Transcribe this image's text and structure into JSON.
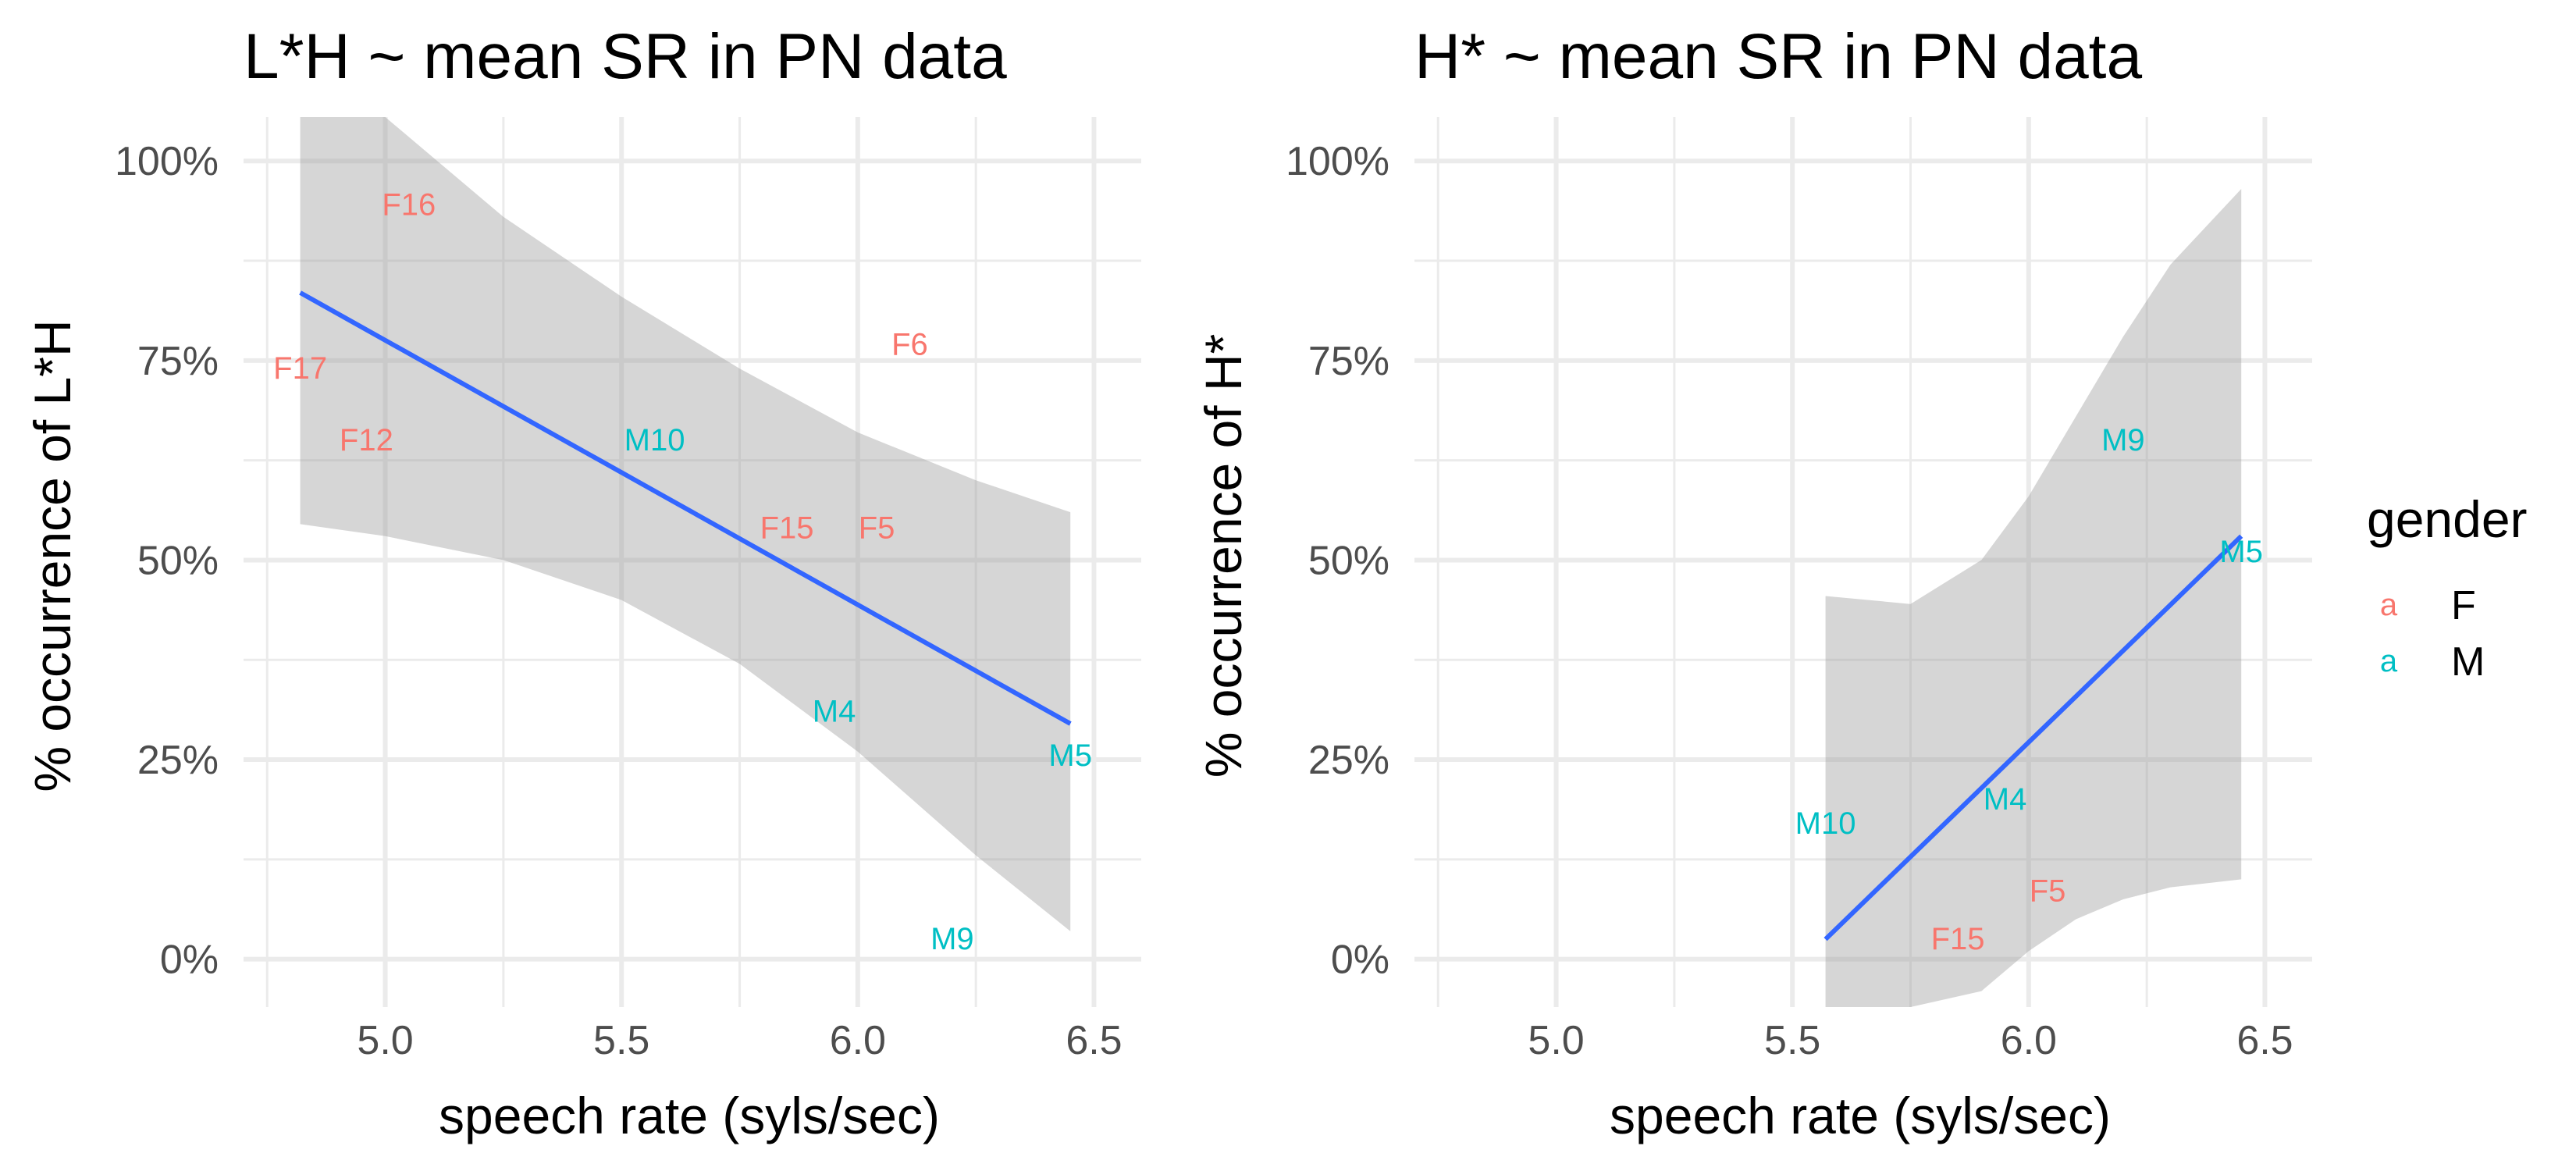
{
  "legend": {
    "title": "gender",
    "key_glyph": "a",
    "items": [
      {
        "label": "F",
        "color": "#F8766D"
      },
      {
        "label": "M",
        "color": "#00BFC4"
      }
    ]
  },
  "fit_color": "#3366FF",
  "chart_data": [
    {
      "type": "scatter",
      "title": "L*H ~ mean SR in PN data",
      "xlabel": "speech rate (syls/sec)",
      "ylabel": "% occurrence of L*H",
      "xlim": [
        4.7,
        6.6
      ],
      "ylim": [
        -0.06,
        1.055
      ],
      "xticks": [
        5.0,
        5.5,
        6.0,
        6.5
      ],
      "xtick_labels": [
        "5.0",
        "5.5",
        "6.0",
        "6.5"
      ],
      "yticks": [
        0,
        0.25,
        0.5,
        0.75,
        1.0
      ],
      "ytick_labels": [
        "0%",
        "25%",
        "50%",
        "75%",
        "100%"
      ],
      "grid": true,
      "points": [
        {
          "label": "F16",
          "gender": "F",
          "x": 5.05,
          "y": 0.945
        },
        {
          "label": "F17",
          "gender": "F",
          "x": 4.82,
          "y": 0.74
        },
        {
          "label": "F12",
          "gender": "F",
          "x": 4.96,
          "y": 0.65
        },
        {
          "label": "F6",
          "gender": "F",
          "x": 6.11,
          "y": 0.77
        },
        {
          "label": "M10",
          "gender": "M",
          "x": 5.57,
          "y": 0.65
        },
        {
          "label": "F15",
          "gender": "F",
          "x": 5.85,
          "y": 0.54
        },
        {
          "label": "F5",
          "gender": "F",
          "x": 6.04,
          "y": 0.54
        },
        {
          "label": "M4",
          "gender": "M",
          "x": 5.95,
          "y": 0.31
        },
        {
          "label": "M5",
          "gender": "M",
          "x": 6.45,
          "y": 0.255
        },
        {
          "label": "M9",
          "gender": "M",
          "x": 6.2,
          "y": 0.025
        }
      ],
      "fit": {
        "x": [
          4.82,
          6.45
        ],
        "y": [
          0.835,
          0.295
        ]
      },
      "ribbon": {
        "x": [
          4.82,
          5.0,
          5.25,
          5.5,
          5.75,
          6.0,
          6.25,
          6.45
        ],
        "upper": [
          1.055,
          1.055,
          0.93,
          0.83,
          0.74,
          0.66,
          0.6,
          0.56
        ],
        "lower": [
          0.545,
          0.53,
          0.5,
          0.45,
          0.37,
          0.26,
          0.13,
          0.035
        ]
      }
    },
    {
      "type": "scatter",
      "title": "H* ~ mean SR in PN data",
      "xlabel": "speech rate (syls/sec)",
      "ylabel": "% occurrence of H*",
      "xlim": [
        4.7,
        6.6
      ],
      "ylim": [
        -0.06,
        1.055
      ],
      "xticks": [
        5.0,
        5.5,
        6.0,
        6.5
      ],
      "xtick_labels": [
        "5.0",
        "5.5",
        "6.0",
        "6.5"
      ],
      "yticks": [
        0,
        0.25,
        0.5,
        0.75,
        1.0
      ],
      "ytick_labels": [
        "0%",
        "25%",
        "50%",
        "75%",
        "100%"
      ],
      "grid": true,
      "points": [
        {
          "label": "M9",
          "gender": "M",
          "x": 6.2,
          "y": 0.65
        },
        {
          "label": "M5",
          "gender": "M",
          "x": 6.45,
          "y": 0.51
        },
        {
          "label": "M10",
          "gender": "M",
          "x": 5.57,
          "y": 0.17
        },
        {
          "label": "M4",
          "gender": "M",
          "x": 5.95,
          "y": 0.2
        },
        {
          "label": "F5",
          "gender": "F",
          "x": 6.04,
          "y": 0.085
        },
        {
          "label": "F15",
          "gender": "F",
          "x": 5.85,
          "y": 0.025
        }
      ],
      "fit": {
        "x": [
          5.57,
          6.45
        ],
        "y": [
          0.025,
          0.53
        ]
      },
      "ribbon": {
        "x": [
          5.57,
          5.75,
          5.9,
          6.0,
          6.1,
          6.2,
          6.3,
          6.45
        ],
        "upper": [
          0.455,
          0.445,
          0.5,
          0.58,
          0.68,
          0.78,
          0.87,
          0.965
        ],
        "lower": [
          -0.06,
          -0.06,
          -0.04,
          0.01,
          0.05,
          0.075,
          0.09,
          0.1
        ]
      }
    }
  ]
}
